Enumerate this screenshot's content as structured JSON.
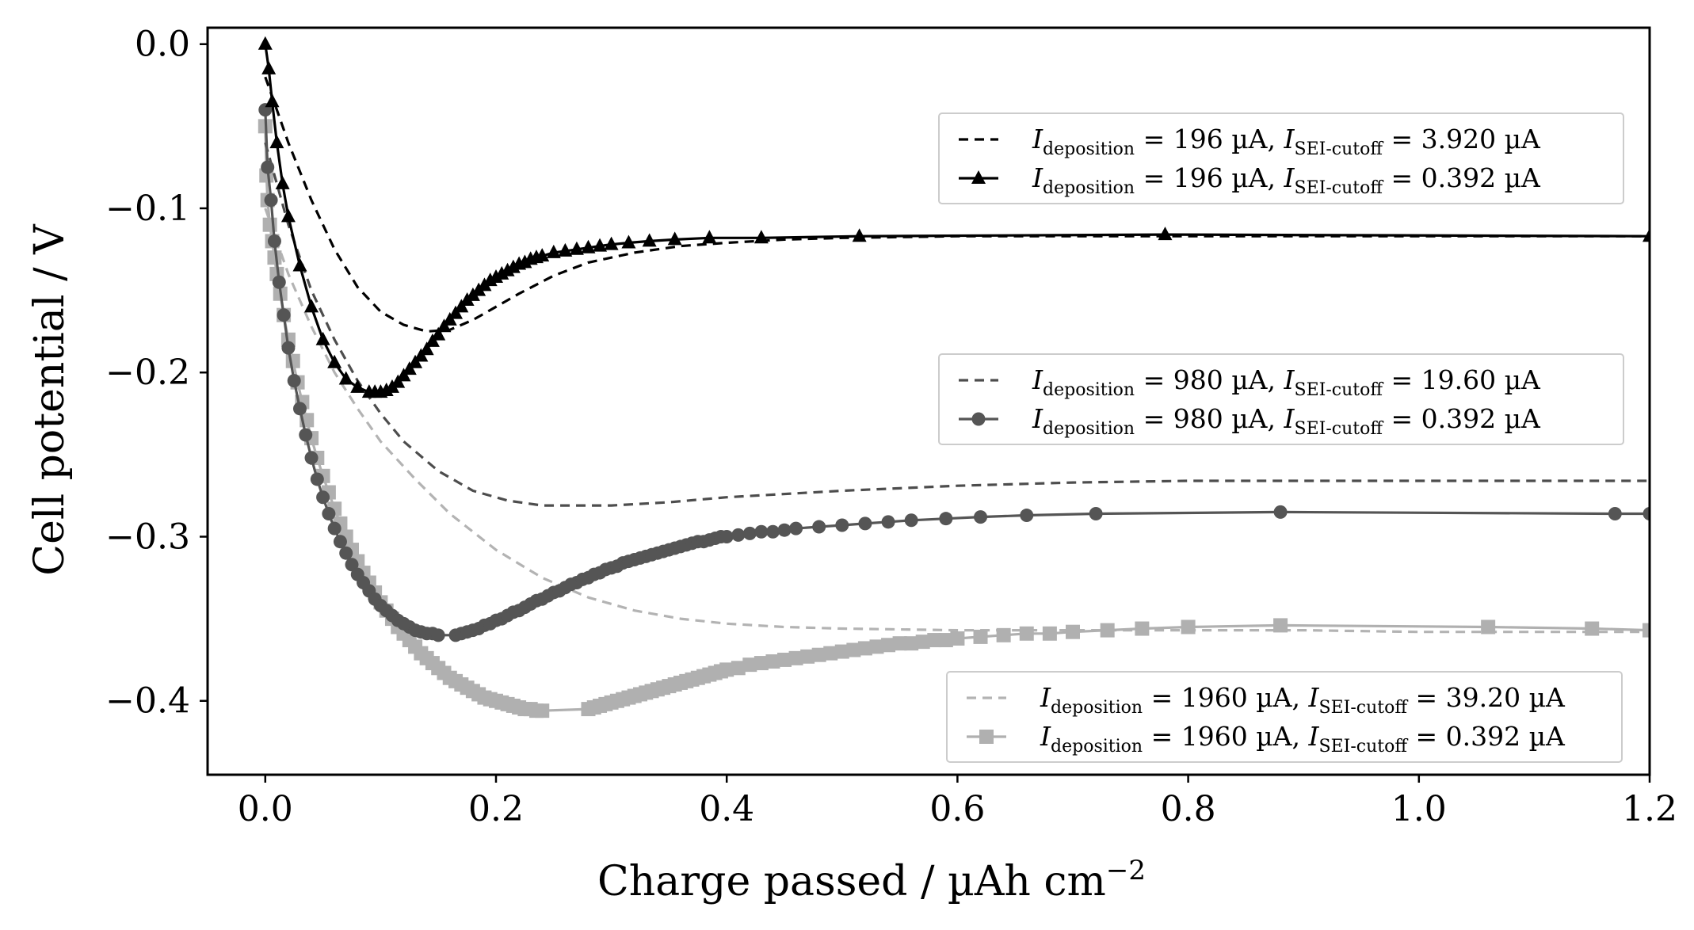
{
  "chart_data": {
    "type": "line",
    "xlabel": "Charge passed / µAh cm",
    "xlabel_exponent": "−2",
    "ylabel": "Cell potential / V",
    "xlim": [
      -0.05,
      1.2
    ],
    "ylim": [
      -0.445,
      0.01
    ],
    "xticks": [
      0.0,
      0.2,
      0.4,
      0.6,
      0.8,
      1.0,
      1.2
    ],
    "xtick_labels": [
      "0.0",
      "0.2",
      "0.4",
      "0.6",
      "0.8",
      "1.0",
      "1.2"
    ],
    "yticks": [
      0.0,
      -0.1,
      -0.2,
      -0.3,
      -0.4
    ],
    "ytick_labels": [
      "0.0",
      "−0.1",
      "−0.2",
      "−0.3",
      "−0.4"
    ],
    "grid": false,
    "legends": [
      {
        "placement": "upper-right",
        "entries": [
          0,
          1
        ]
      },
      {
        "placement": "center-right",
        "entries": [
          2,
          3
        ]
      },
      {
        "placement": "lower-right",
        "entries": [
          4,
          5
        ]
      }
    ],
    "series": [
      {
        "name": "I_deposition = 196 µA, I_SEI-cutoff = 3.920 µA",
        "label": {
          "i": "I",
          "dep_sub": "deposition",
          "dep_val": " = 196 µA, ",
          "sei_sub": "SEI-cutoff",
          "sei_val": " = 3.920 µA"
        },
        "color": "#000000",
        "dash": "12 8",
        "marker": "none",
        "x": [
          0.0,
          0.01,
          0.02,
          0.04,
          0.06,
          0.08,
          0.1,
          0.12,
          0.14,
          0.16,
          0.18,
          0.2,
          0.22,
          0.25,
          0.28,
          0.32,
          0.36,
          0.4,
          0.45,
          0.5,
          0.6,
          0.7,
          0.8,
          0.9,
          1.0,
          1.2
        ],
        "y": [
          -0.02,
          -0.04,
          -0.06,
          -0.095,
          -0.125,
          -0.148,
          -0.163,
          -0.171,
          -0.175,
          -0.174,
          -0.168,
          -0.16,
          -0.152,
          -0.141,
          -0.133,
          -0.127,
          -0.123,
          -0.121,
          -0.119,
          -0.118,
          -0.117,
          -0.117,
          -0.117,
          -0.117,
          -0.117,
          -0.117
        ]
      },
      {
        "name": "I_deposition = 196 µA, I_SEI-cutoff = 0.392 µA",
        "label": {
          "i": "I",
          "dep_sub": "deposition",
          "dep_val": " = 196 µA, ",
          "sei_sub": "SEI-cutoff",
          "sei_val": " = 0.392 µA"
        },
        "color": "#000000",
        "dash": "none",
        "marker": "triangle",
        "x": [
          0.0,
          0.003,
          0.006,
          0.01,
          0.015,
          0.02,
          0.03,
          0.04,
          0.05,
          0.06,
          0.07,
          0.08,
          0.09,
          0.095,
          0.1,
          0.105,
          0.11,
          0.115,
          0.12,
          0.125,
          0.13,
          0.135,
          0.14,
          0.145,
          0.15,
          0.155,
          0.16,
          0.165,
          0.17,
          0.175,
          0.18,
          0.185,
          0.19,
          0.195,
          0.2,
          0.205,
          0.21,
          0.215,
          0.22,
          0.225,
          0.23,
          0.235,
          0.24,
          0.25,
          0.26,
          0.27,
          0.28,
          0.29,
          0.3,
          0.315,
          0.333,
          0.355,
          0.385,
          0.43,
          0.515,
          0.78,
          1.2
        ],
        "y": [
          0.0,
          -0.015,
          -0.035,
          -0.06,
          -0.085,
          -0.105,
          -0.135,
          -0.16,
          -0.18,
          -0.194,
          -0.204,
          -0.209,
          -0.212,
          -0.212,
          -0.212,
          -0.211,
          -0.209,
          -0.206,
          -0.202,
          -0.198,
          -0.194,
          -0.19,
          -0.186,
          -0.181,
          -0.177,
          -0.172,
          -0.168,
          -0.164,
          -0.16,
          -0.156,
          -0.153,
          -0.15,
          -0.147,
          -0.144,
          -0.142,
          -0.14,
          -0.138,
          -0.136,
          -0.134,
          -0.133,
          -0.131,
          -0.13,
          -0.129,
          -0.127,
          -0.126,
          -0.125,
          -0.124,
          -0.123,
          -0.122,
          -0.121,
          -0.12,
          -0.119,
          -0.118,
          -0.118,
          -0.117,
          -0.116,
          -0.117
        ]
      },
      {
        "name": "I_deposition = 980 µA, I_SEI-cutoff = 19.60 µA",
        "label": {
          "i": "I",
          "dep_sub": "deposition",
          "dep_val": " = 980 µA, ",
          "sei_sub": "SEI-cutoff",
          "sei_val": " = 19.60 µA"
        },
        "color": "#4d4d4d",
        "dash": "12 8",
        "marker": "none",
        "x": [
          0.0,
          0.01,
          0.02,
          0.04,
          0.06,
          0.08,
          0.1,
          0.12,
          0.15,
          0.18,
          0.21,
          0.24,
          0.27,
          0.3,
          0.35,
          0.4,
          0.5,
          0.6,
          0.7,
          0.8,
          0.9,
          1.0,
          1.2
        ],
        "y": [
          -0.06,
          -0.085,
          -0.11,
          -0.15,
          -0.18,
          -0.205,
          -0.225,
          -0.242,
          -0.26,
          -0.272,
          -0.278,
          -0.281,
          -0.281,
          -0.281,
          -0.279,
          -0.276,
          -0.272,
          -0.269,
          -0.267,
          -0.266,
          -0.266,
          -0.266,
          -0.266
        ]
      },
      {
        "name": "I_deposition = 980 µA, I_SEI-cutoff = 0.392 µA",
        "label": {
          "i": "I",
          "dep_sub": "deposition",
          "dep_val": " = 980 µA, ",
          "sei_sub": "SEI-cutoff",
          "sei_val": " = 0.392 µA"
        },
        "color": "#555555",
        "dash": "none",
        "marker": "circle",
        "x": [
          0.0,
          0.002,
          0.005,
          0.008,
          0.012,
          0.016,
          0.02,
          0.025,
          0.03,
          0.035,
          0.04,
          0.045,
          0.05,
          0.055,
          0.06,
          0.065,
          0.07,
          0.075,
          0.08,
          0.085,
          0.09,
          0.095,
          0.1,
          0.105,
          0.11,
          0.115,
          0.12,
          0.125,
          0.13,
          0.135,
          0.14,
          0.145,
          0.15,
          0.165,
          0.17,
          0.175,
          0.18,
          0.185,
          0.19,
          0.195,
          0.2,
          0.205,
          0.21,
          0.215,
          0.22,
          0.225,
          0.23,
          0.235,
          0.24,
          0.245,
          0.25,
          0.255,
          0.26,
          0.265,
          0.27,
          0.275,
          0.28,
          0.285,
          0.29,
          0.295,
          0.3,
          0.305,
          0.31,
          0.315,
          0.32,
          0.325,
          0.33,
          0.335,
          0.34,
          0.345,
          0.35,
          0.355,
          0.36,
          0.365,
          0.37,
          0.375,
          0.38,
          0.385,
          0.39,
          0.395,
          0.4,
          0.41,
          0.42,
          0.43,
          0.44,
          0.45,
          0.46,
          0.48,
          0.5,
          0.52,
          0.54,
          0.56,
          0.59,
          0.62,
          0.66,
          0.72,
          0.88,
          1.17,
          1.2
        ],
        "y": [
          -0.04,
          -0.075,
          -0.095,
          -0.12,
          -0.145,
          -0.165,
          -0.185,
          -0.205,
          -0.222,
          -0.238,
          -0.252,
          -0.265,
          -0.276,
          -0.286,
          -0.295,
          -0.303,
          -0.31,
          -0.317,
          -0.323,
          -0.328,
          -0.333,
          -0.338,
          -0.342,
          -0.345,
          -0.348,
          -0.351,
          -0.353,
          -0.355,
          -0.357,
          -0.358,
          -0.359,
          -0.359,
          -0.36,
          -0.36,
          -0.359,
          -0.358,
          -0.357,
          -0.356,
          -0.354,
          -0.353,
          -0.351,
          -0.35,
          -0.348,
          -0.346,
          -0.345,
          -0.343,
          -0.341,
          -0.339,
          -0.338,
          -0.336,
          -0.334,
          -0.333,
          -0.331,
          -0.329,
          -0.328,
          -0.326,
          -0.325,
          -0.323,
          -0.322,
          -0.32,
          -0.319,
          -0.318,
          -0.316,
          -0.315,
          -0.314,
          -0.313,
          -0.312,
          -0.311,
          -0.31,
          -0.309,
          -0.308,
          -0.307,
          -0.306,
          -0.305,
          -0.304,
          -0.303,
          -0.303,
          -0.302,
          -0.301,
          -0.3,
          -0.3,
          -0.299,
          -0.298,
          -0.297,
          -0.297,
          -0.296,
          -0.295,
          -0.294,
          -0.293,
          -0.292,
          -0.291,
          -0.29,
          -0.289,
          -0.288,
          -0.287,
          -0.286,
          -0.285,
          -0.286,
          -0.286
        ]
      },
      {
        "name": "I_deposition = 1960 µA, I_SEI-cutoff = 39.20 µA",
        "label": {
          "i": "I",
          "dep_sub": "deposition",
          "dep_val": " = 1960 µA, ",
          "sei_sub": "SEI-cutoff",
          "sei_val": " = 39.20 µA"
        },
        "color": "#b3b3b3",
        "dash": "12 8",
        "marker": "none",
        "x": [
          0.0,
          0.01,
          0.02,
          0.04,
          0.06,
          0.08,
          0.1,
          0.13,
          0.16,
          0.2,
          0.24,
          0.28,
          0.32,
          0.36,
          0.4,
          0.45,
          0.5,
          0.6,
          0.7,
          0.8,
          0.9,
          1.0,
          1.2
        ],
        "y": [
          -0.1,
          -0.12,
          -0.14,
          -0.172,
          -0.2,
          -0.222,
          -0.242,
          -0.265,
          -0.286,
          -0.308,
          -0.325,
          -0.337,
          -0.345,
          -0.35,
          -0.353,
          -0.355,
          -0.356,
          -0.357,
          -0.357,
          -0.357,
          -0.357,
          -0.358,
          -0.358
        ]
      },
      {
        "name": "I_deposition = 1960 µA, I_SEI-cutoff = 0.392 µA",
        "label": {
          "i": "I",
          "dep_sub": "deposition",
          "dep_val": " = 1960 µA, ",
          "sei_sub": "SEI-cutoff",
          "sei_val": " = 0.392 µA"
        },
        "color": "#b0b0b0",
        "dash": "none",
        "marker": "square",
        "x": [
          0.0,
          0.001,
          0.002,
          0.004,
          0.006,
          0.008,
          0.01,
          0.013,
          0.016,
          0.02,
          0.024,
          0.028,
          0.032,
          0.036,
          0.04,
          0.045,
          0.05,
          0.055,
          0.06,
          0.065,
          0.07,
          0.075,
          0.08,
          0.085,
          0.09,
          0.095,
          0.1,
          0.105,
          0.11,
          0.115,
          0.12,
          0.125,
          0.13,
          0.135,
          0.14,
          0.145,
          0.15,
          0.155,
          0.16,
          0.165,
          0.17,
          0.175,
          0.18,
          0.185,
          0.19,
          0.195,
          0.2,
          0.205,
          0.21,
          0.215,
          0.22,
          0.225,
          0.23,
          0.235,
          0.24,
          0.28,
          0.285,
          0.29,
          0.295,
          0.3,
          0.305,
          0.31,
          0.315,
          0.32,
          0.325,
          0.33,
          0.335,
          0.34,
          0.345,
          0.35,
          0.355,
          0.36,
          0.365,
          0.37,
          0.375,
          0.38,
          0.385,
          0.39,
          0.395,
          0.4,
          0.41,
          0.42,
          0.43,
          0.44,
          0.45,
          0.46,
          0.47,
          0.48,
          0.49,
          0.5,
          0.51,
          0.52,
          0.53,
          0.54,
          0.55,
          0.56,
          0.57,
          0.58,
          0.59,
          0.6,
          0.62,
          0.64,
          0.66,
          0.68,
          0.7,
          0.73,
          0.76,
          0.8,
          0.88,
          1.06,
          1.15,
          1.2
        ],
        "y": [
          -0.05,
          -0.08,
          -0.095,
          -0.11,
          -0.12,
          -0.13,
          -0.14,
          -0.152,
          -0.165,
          -0.18,
          -0.193,
          -0.206,
          -0.218,
          -0.229,
          -0.24,
          -0.252,
          -0.263,
          -0.273,
          -0.283,
          -0.292,
          -0.3,
          -0.308,
          -0.315,
          -0.322,
          -0.328,
          -0.334,
          -0.34,
          -0.345,
          -0.35,
          -0.355,
          -0.359,
          -0.363,
          -0.367,
          -0.371,
          -0.374,
          -0.377,
          -0.38,
          -0.383,
          -0.386,
          -0.388,
          -0.39,
          -0.392,
          -0.394,
          -0.396,
          -0.398,
          -0.399,
          -0.4,
          -0.401,
          -0.402,
          -0.403,
          -0.404,
          -0.405,
          -0.405,
          -0.406,
          -0.406,
          -0.405,
          -0.404,
          -0.403,
          -0.402,
          -0.401,
          -0.4,
          -0.399,
          -0.398,
          -0.397,
          -0.396,
          -0.395,
          -0.394,
          -0.393,
          -0.392,
          -0.391,
          -0.39,
          -0.389,
          -0.388,
          -0.387,
          -0.386,
          -0.385,
          -0.384,
          -0.383,
          -0.382,
          -0.381,
          -0.38,
          -0.378,
          -0.377,
          -0.376,
          -0.375,
          -0.374,
          -0.373,
          -0.372,
          -0.371,
          -0.37,
          -0.369,
          -0.368,
          -0.367,
          -0.366,
          -0.365,
          -0.365,
          -0.364,
          -0.363,
          -0.363,
          -0.362,
          -0.361,
          -0.36,
          -0.359,
          -0.359,
          -0.358,
          -0.357,
          -0.356,
          -0.355,
          -0.354,
          -0.355,
          -0.356,
          -0.357
        ]
      }
    ]
  }
}
